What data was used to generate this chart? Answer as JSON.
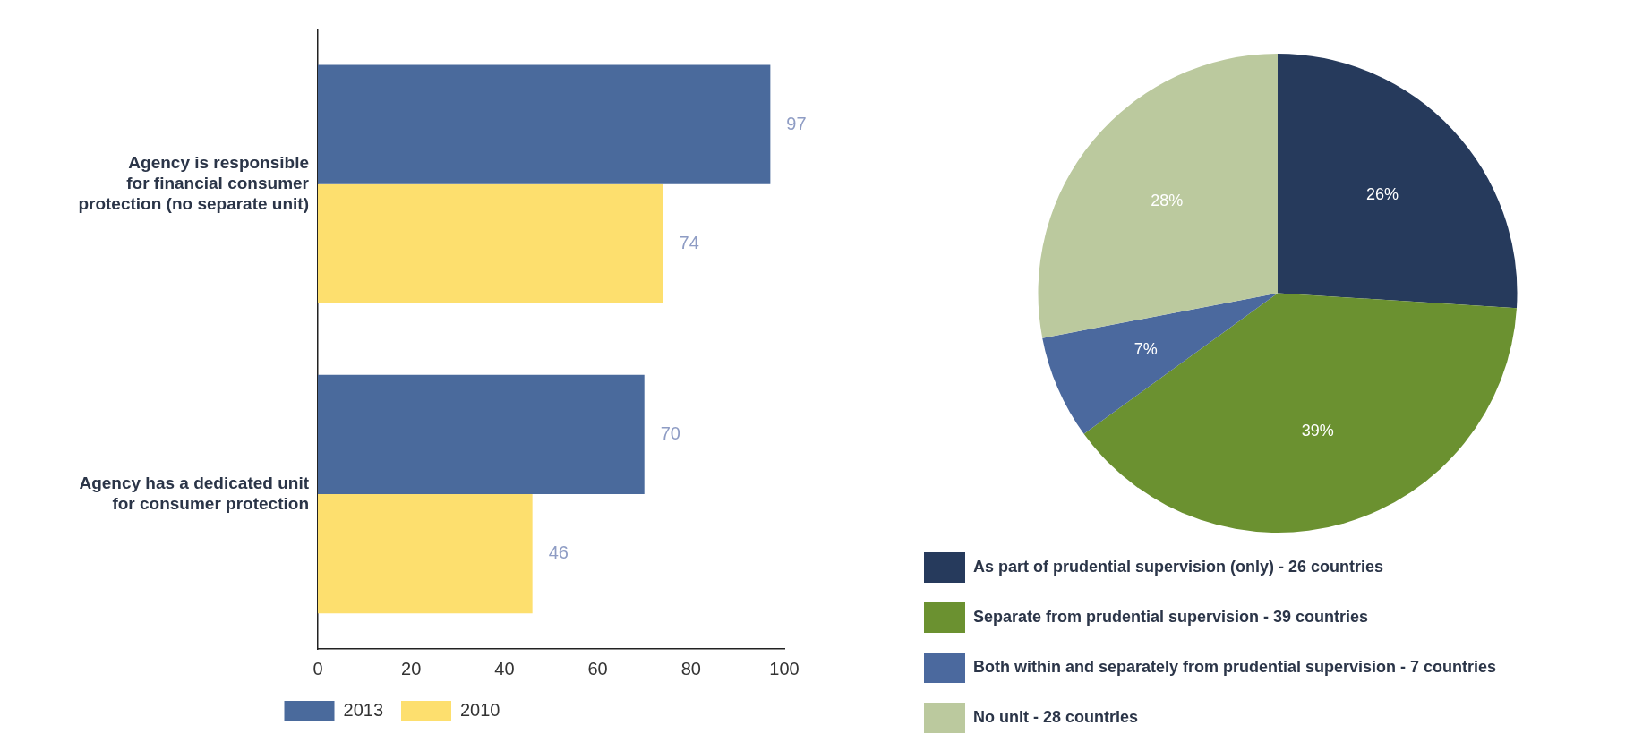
{
  "chart_data": [
    {
      "type": "bar",
      "orientation": "horizontal",
      "categories": [
        "Agency is responsible\nfor financial consumer\nprotection (no separate unit)",
        "Agency has a dedicated unit\nfor consumer protection"
      ],
      "series": [
        {
          "name": "2013",
          "color": "#4a6a9c",
          "values": [
            97,
            70
          ]
        },
        {
          "name": "2010",
          "color": "#fddf6e",
          "values": [
            74,
            46
          ]
        }
      ],
      "xlim": [
        0,
        100
      ],
      "xticks": [
        0,
        20,
        40,
        60,
        80,
        100
      ],
      "grid": false,
      "legend": "bottom",
      "data_labels": true
    },
    {
      "type": "pie",
      "categories": [
        "As part of prudential supervision (only) - 26 countries",
        "Separate from prudential supervision - 39 countries",
        "Both within and separately from prudential supervision - 7 countries",
        "No unit - 28 countries"
      ],
      "values": [
        26,
        39,
        7,
        28
      ],
      "colors": [
        "#263a5c",
        "#6b9130",
        "#4b699e",
        "#bbc99e"
      ],
      "value_labels": [
        "26%",
        "39%",
        "7%",
        "28%"
      ],
      "legend": "bottom"
    }
  ]
}
